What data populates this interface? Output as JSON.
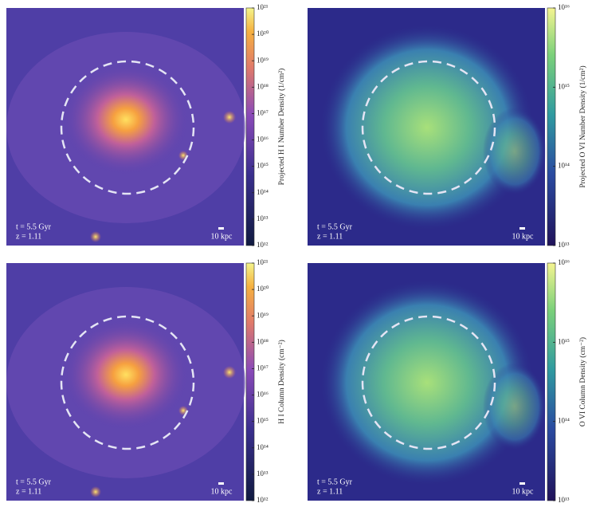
{
  "panels": [
    {
      "time": "t = 5.5 Gyr",
      "redshift": "z = 1.11",
      "scale": "10 kpc",
      "kind": "hi",
      "colorbar": {
        "label": "Projected H I Number Density (1/cm²)",
        "lim": [
          1000000000000.0,
          1e+21
        ],
        "ticks": [
          {
            "value": 1000000000000.0,
            "label": "10¹²"
          },
          {
            "value": 10000000000000.0,
            "label": "10¹³"
          },
          {
            "value": 100000000000000.0,
            "label": "10¹⁴"
          },
          {
            "value": 1000000000000000.0,
            "label": "10¹⁵"
          },
          {
            "value": 1e+16,
            "label": "10¹⁶"
          },
          {
            "value": 1e+17,
            "label": "10¹⁷"
          },
          {
            "value": 1e+18,
            "label": "10¹⁸"
          },
          {
            "value": 1e+19,
            "label": "10¹⁹"
          },
          {
            "value": 1e+20,
            "label": "10²⁰"
          },
          {
            "value": 1e+21,
            "label": "10²¹"
          }
        ]
      }
    },
    {
      "time": "t = 5.5 Gyr",
      "redshift": "z = 1.11",
      "scale": "10 kpc",
      "kind": "ovi",
      "colorbar": {
        "label": "Projected O VI Number Density (1/cm²)",
        "lim": [
          10000000000000.0,
          1e+16
        ],
        "ticks": [
          {
            "value": 10000000000000.0,
            "label": "10¹³"
          },
          {
            "value": 100000000000000.0,
            "label": "10¹⁴"
          },
          {
            "value": 1000000000000000.0,
            "label": "10¹⁵"
          },
          {
            "value": 1e+16,
            "label": "10¹⁶"
          }
        ]
      }
    },
    {
      "time": "t = 5.5 Gyr",
      "redshift": "z = 1.11",
      "scale": "10 kpc",
      "kind": "hi",
      "colorbar": {
        "label": "H I Column Density (cm⁻²)",
        "lim": [
          1000000000000.0,
          1e+21
        ],
        "ticks": [
          {
            "value": 1000000000000.0,
            "label": "10¹²"
          },
          {
            "value": 10000000000000.0,
            "label": "10¹³"
          },
          {
            "value": 100000000000000.0,
            "label": "10¹⁴"
          },
          {
            "value": 1000000000000000.0,
            "label": "10¹⁵"
          },
          {
            "value": 1e+16,
            "label": "10¹⁶"
          },
          {
            "value": 1e+17,
            "label": "10¹⁷"
          },
          {
            "value": 1e+18,
            "label": "10¹⁸"
          },
          {
            "value": 1e+19,
            "label": "10¹⁹"
          },
          {
            "value": 1e+20,
            "label": "10²⁰"
          },
          {
            "value": 1e+21,
            "label": "10²¹"
          }
        ]
      }
    },
    {
      "time": "t = 5.5 Gyr",
      "redshift": "z = 1.11",
      "scale": "10 kpc",
      "kind": "ovi",
      "colorbar": {
        "label": "O VI Column Density (cm⁻²)",
        "lim": [
          10000000000000.0,
          1e+16
        ],
        "ticks": [
          {
            "value": 10000000000000.0,
            "label": "10¹³"
          },
          {
            "value": 100000000000000.0,
            "label": "10¹⁴"
          },
          {
            "value": 1000000000000000.0,
            "label": "10¹⁵"
          },
          {
            "value": 1e+16,
            "label": "10¹⁶"
          }
        ]
      }
    }
  ]
}
